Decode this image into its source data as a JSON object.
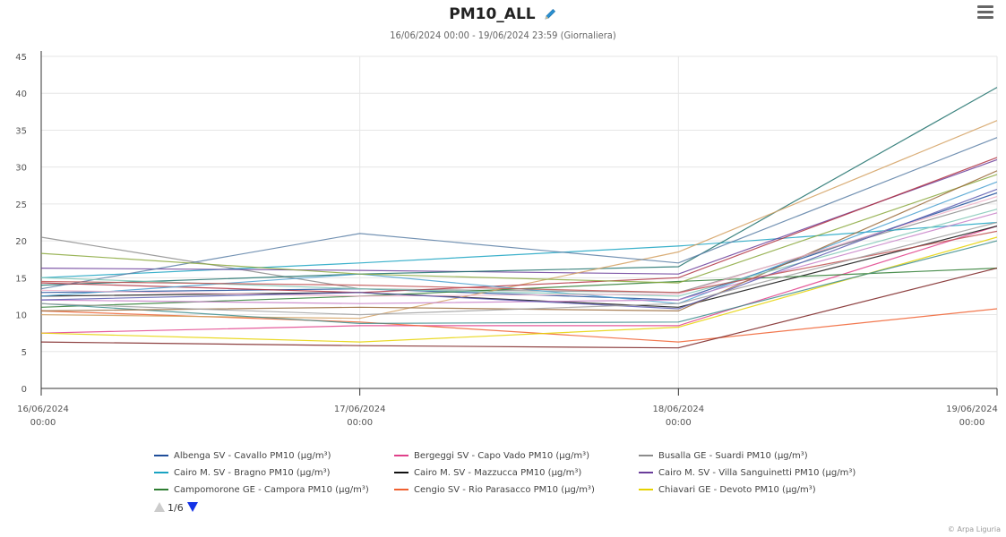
{
  "header": {
    "title": "PM10_ALL",
    "subtitle": "16/06/2024 00:00 - 19/06/2024 23:59 (Giornaliera)"
  },
  "legend": {
    "items": [
      {
        "label": "Albenga SV - Cavallo PM10 (µg/m³)",
        "color": "#1f4e9a"
      },
      {
        "label": "Bergeggi SV - Capo Vado PM10 (µg/m³)",
        "color": "#e0408a"
      },
      {
        "label": "Busalla GE - Suardi PM10 (µg/m³)",
        "color": "#8c8c8c"
      },
      {
        "label": "Cairo M. SV - Bragno PM10 (µg/m³)",
        "color": "#1aa3c2"
      },
      {
        "label": "Cairo M. SV - Mazzucca PM10 (µg/m³)",
        "color": "#111111"
      },
      {
        "label": "Cairo M. SV - Villa Sanguinetti PM10 (µg/m³)",
        "color": "#6a3d9a"
      },
      {
        "label": "Campomorone GE - Campora PM10 (µg/m³)",
        "color": "#2e7d32"
      },
      {
        "label": "Cengio SV - Rio Parasacco PM10 (µg/m³)",
        "color": "#f06030"
      },
      {
        "label": "Chiavari GE - Devoto PM10 (µg/m³)",
        "color": "#e6d200"
      }
    ],
    "page_label": "1/6"
  },
  "credits": "© Arpa Liguria",
  "chart_data": {
    "type": "line",
    "title": "PM10_ALL",
    "subtitle": "16/06/2024 00:00 - 19/06/2024 23:59 (Giornaliera)",
    "x": [
      "16/06/2024 00:00",
      "17/06/2024 00:00",
      "18/06/2024 00:00",
      "19/06/2024 00:00"
    ],
    "x_ticks": [
      {
        "date": "16/06/2024",
        "time": "00:00"
      },
      {
        "date": "17/06/2024",
        "time": "00:00"
      },
      {
        "date": "18/06/2024",
        "time": "00:00"
      },
      {
        "date": "19/06/2024",
        "time": "00:00"
      }
    ],
    "ylim": [
      0,
      45
    ],
    "yticks": [
      0,
      5,
      10,
      15,
      20,
      25,
      30,
      35,
      40,
      45
    ],
    "grid": true,
    "legend_position": "bottom",
    "series": [
      {
        "name": "Albenga SV - Cavallo PM10 (µg/m³)",
        "color": "#1f4e9a",
        "values": [
          13,
          13.5,
          12,
          26.5
        ]
      },
      {
        "name": "Bergeggi SV - Capo Vado PM10 (µg/m³)",
        "color": "#e0408a",
        "values": [
          7.5,
          8.5,
          8.5,
          22
        ]
      },
      {
        "name": "Busalla GE - Suardi PM10 (µg/m³)",
        "color": "#8c8c8c",
        "values": [
          20.5,
          13.5,
          13,
          25.5
        ]
      },
      {
        "name": "Cairo M. SV - Bragno PM10 (µg/m³)",
        "color": "#1aa3c2",
        "values": [
          15,
          17,
          19.3,
          22.5
        ]
      },
      {
        "name": "Cairo M. SV - Mazzucca PM10 (µg/m³)",
        "color": "#111111",
        "values": [
          12.5,
          13,
          11,
          22
        ]
      },
      {
        "name": "Cairo M. SV - Villa Sanguinetti PM10 (µg/m³)",
        "color": "#6a3d9a",
        "values": [
          16.3,
          16,
          15.5,
          31
        ]
      },
      {
        "name": "Campomorone GE - Campora PM10 (µg/m³)",
        "color": "#2e7d32",
        "values": [
          11,
          12.5,
          14.5,
          16.3
        ]
      },
      {
        "name": "Cengio SV - Rio Parasacco PM10 (µg/m³)",
        "color": "#f06030",
        "values": [
          10.5,
          9,
          6.3,
          10.8
        ]
      },
      {
        "name": "Chiavari GE - Devoto PM10 (µg/m³)",
        "color": "#e6d200",
        "values": [
          7.5,
          6.3,
          8.3,
          20.5
        ]
      },
      {
        "color": "#1b6f6a",
        "values": [
          14,
          15.5,
          16.5,
          40.8
        ]
      },
      {
        "color": "#d4a060",
        "values": [
          10,
          9.5,
          18.5,
          36.3
        ]
      },
      {
        "color": "#5b7fa6",
        "values": [
          13.5,
          21,
          17,
          34
        ]
      },
      {
        "color": "#7a2020",
        "values": [
          6.3,
          5.8,
          5.5,
          16.3
        ]
      },
      {
        "color": "#b03040",
        "values": [
          14.3,
          13,
          15,
          31.3
        ]
      },
      {
        "color": "#4aa0d0",
        "values": [
          12.5,
          15.5,
          11.5,
          28
        ]
      },
      {
        "color": "#8aa83c",
        "values": [
          18.3,
          15.5,
          14.3,
          29
        ]
      },
      {
        "color": "#c77fc7",
        "values": [
          12,
          11.5,
          12,
          23.8
        ]
      },
      {
        "color": "#3c8c8c",
        "values": [
          11.5,
          8.8,
          9,
          20
        ]
      },
      {
        "color": "#9a6a3a",
        "values": [
          10.5,
          11,
          10.5,
          29.5
        ]
      },
      {
        "color": "#7fc7b5",
        "values": [
          15,
          13.5,
          12.5,
          24.3
        ]
      },
      {
        "color": "#f0b0c8",
        "values": [
          13.3,
          12.5,
          12.8,
          26
        ]
      },
      {
        "color": "#5a5ab0",
        "values": [
          12,
          13,
          10.8,
          27
        ]
      },
      {
        "color": "#c05050",
        "values": [
          14.5,
          14,
          13,
          21.3
        ]
      },
      {
        "color": "#a0a0a0",
        "values": [
          11.5,
          10,
          11.5,
          22.5
        ]
      }
    ]
  }
}
